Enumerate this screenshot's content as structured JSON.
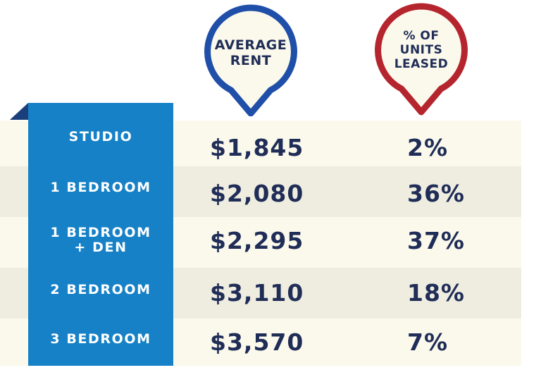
{
  "chart_data": {
    "type": "table",
    "columns": [
      "AVERAGE RENT",
      "% OF UNITS LEASED"
    ],
    "rows": [
      {
        "label": "STUDIO",
        "average_rent": "$1,845",
        "pct_leased": "2%"
      },
      {
        "label": "1 BEDROOM",
        "average_rent": "$2,080",
        "pct_leased": "36%"
      },
      {
        "label": "1 BEDROOM + DEN",
        "label_lines": [
          "1 BEDROOM",
          "+ DEN"
        ],
        "average_rent": "$2,295",
        "pct_leased": "37%"
      },
      {
        "label": "2 BEDROOM",
        "average_rent": "$3,110",
        "pct_leased": "18%"
      },
      {
        "label": "3 BEDROOM",
        "average_rent": "$3,570",
        "pct_leased": "7%"
      }
    ]
  },
  "headers": {
    "rent_lines": [
      "AVERAGE",
      "RENT"
    ],
    "leased_lines": [
      "% OF",
      "UNITS",
      "LEASED"
    ]
  },
  "colors": {
    "rent_pin": "#1f4fa8",
    "leased_pin": "#b5252e",
    "pin_fill": "#fbf9ec",
    "sidebar": "#1681c7",
    "sidebar_fold": "#1a3f7a",
    "text_dark": "#1f2d57",
    "band_light": "#fbf9ec",
    "band_dark": "#efede0"
  },
  "icons": {
    "rent_pin": "map-pin-icon",
    "leased_pin": "map-pin-icon"
  }
}
